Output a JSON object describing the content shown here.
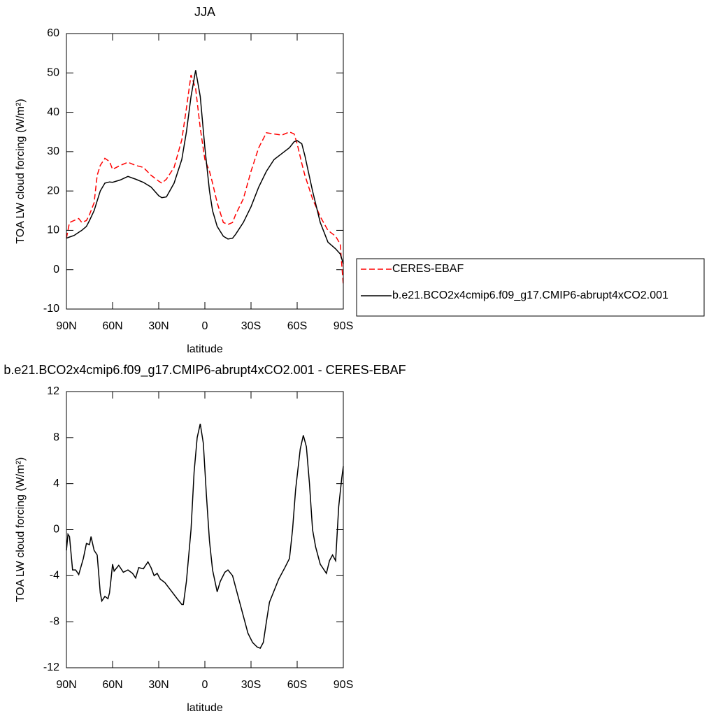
{
  "chart_data": [
    {
      "type": "line",
      "title": "JJA",
      "xlabel": "latitude",
      "ylabel": "TOA LW cloud forcing (W/m²)",
      "xlim": [
        90,
        -90
      ],
      "ylim": [
        -10,
        60
      ],
      "xticks": [
        {
          "value": 90,
          "label": "90N"
        },
        {
          "value": 60,
          "label": "60N"
        },
        {
          "value": 30,
          "label": "30N"
        },
        0,
        {
          "value": -30,
          "label": "30S"
        },
        {
          "value": -60,
          "label": "60S"
        },
        {
          "value": -90,
          "label": "90S"
        }
      ],
      "yticks": [
        -10,
        0,
        10,
        20,
        30,
        40,
        50,
        60
      ],
      "legend": "right",
      "x": [
        90,
        88,
        85,
        82,
        80,
        77,
        75,
        72,
        70,
        68,
        65,
        62,
        60,
        55,
        50,
        45,
        40,
        35,
        30,
        28,
        25,
        20,
        15,
        12,
        9,
        6,
        3,
        0,
        -3,
        -5,
        -8,
        -12,
        -15,
        -18,
        -20,
        -25,
        -30,
        -35,
        -40,
        -45,
        -50,
        -55,
        -58,
        -60,
        -63,
        -65,
        -70,
        -75,
        -80,
        -85,
        -88,
        -90
      ],
      "series": [
        {
          "name": "CERES-EBAF",
          "color": "#ff0000",
          "dashed": true,
          "values": [
            8,
            12,
            12.5,
            13,
            12,
            12.5,
            14,
            17,
            24,
            26.5,
            28.3,
            27.5,
            25.5,
            26.5,
            27.3,
            26.5,
            26,
            24,
            22.5,
            22,
            23,
            26,
            33,
            41,
            49.5,
            46,
            36,
            28,
            25,
            22,
            17,
            12,
            11.5,
            12,
            14,
            18,
            25,
            31,
            34.8,
            34.5,
            34.2,
            35,
            34.5,
            32,
            27,
            24,
            18,
            13.5,
            10,
            8.5,
            6.5,
            -4
          ]
        },
        {
          "name": "b.e21.BCO2x4cmip6.f09_g17.CMIP6-abrupt4xCO2.001",
          "color": "#000000",
          "dashed": false,
          "values": [
            8,
            8.3,
            8.7,
            9.5,
            10,
            11,
            12.5,
            15,
            17.5,
            20,
            22,
            22.3,
            22.2,
            22.8,
            23.7,
            23,
            22.2,
            21,
            18.8,
            18.3,
            18.5,
            22,
            28,
            35,
            44,
            50.7,
            44,
            31,
            20,
            15,
            11,
            8.5,
            7.8,
            8,
            9,
            12,
            16,
            21,
            25,
            28,
            29.5,
            31,
            32.5,
            32.8,
            32,
            29,
            20,
            12,
            7,
            5.3,
            4,
            1.5
          ]
        }
      ]
    },
    {
      "type": "line",
      "title": "b.e21.BCO2x4cmip6.f09_g17.CMIP6-abrupt4xCO2.001 - CERES-EBAF",
      "xlabel": "latitude",
      "ylabel": "TOA LW cloud forcing (W/m²)",
      "xlim": [
        90,
        -90
      ],
      "ylim": [
        -12,
        12
      ],
      "xticks": [
        {
          "value": 90,
          "label": "90N"
        },
        {
          "value": 60,
          "label": "60N"
        },
        {
          "value": 30,
          "label": "30N"
        },
        0,
        {
          "value": -30,
          "label": "30S"
        },
        {
          "value": -60,
          "label": "60S"
        },
        {
          "value": -90,
          "label": "90S"
        }
      ],
      "yticks": [
        -12,
        -8,
        -4,
        0,
        4,
        8,
        12
      ],
      "x": [
        90,
        89,
        88,
        86,
        84,
        82,
        79,
        77,
        75,
        74,
        72,
        70,
        68,
        67,
        65,
        63,
        62,
        61,
        60,
        59,
        56,
        53,
        50,
        47,
        45,
        43,
        40,
        37,
        35,
        33,
        31,
        29,
        26,
        22,
        18,
        15,
        14,
        12,
        9,
        7,
        5,
        3,
        1,
        -1,
        -3,
        -5,
        -8,
        -10,
        -13,
        -15,
        -18,
        -21,
        -25,
        -28,
        -31,
        -34,
        -36,
        -38,
        -40,
        -42,
        -45,
        -48,
        -52,
        -55,
        -57,
        -59,
        -62,
        -64,
        -66,
        -68,
        -70,
        -72,
        -75,
        -77,
        -79,
        -81,
        -83,
        -85,
        -87,
        -89,
        -90
      ],
      "series": [
        {
          "color": "#000000",
          "dashed": false,
          "values": [
            -1.8,
            -0.4,
            -0.6,
            -3.5,
            -3.5,
            -3.9,
            -2.5,
            -1.2,
            -1.3,
            -0.6,
            -1.8,
            -2.2,
            -5.5,
            -6.2,
            -5.8,
            -6,
            -5.5,
            -4.3,
            -3,
            -3.6,
            -3.1,
            -3.7,
            -3.5,
            -3.8,
            -4.2,
            -3.3,
            -3.4,
            -2.8,
            -3.3,
            -4,
            -3.8,
            -4.3,
            -4.6,
            -5.3,
            -6,
            -6.5,
            -6.5,
            -4.5,
            0,
            5,
            8,
            9.2,
            7.5,
            3,
            -1,
            -3.5,
            -5.4,
            -4.5,
            -3.7,
            -3.5,
            -4,
            -5.5,
            -7.5,
            -9,
            -9.8,
            -10.2,
            -10.3,
            -9.8,
            -8,
            -6.3,
            -5.3,
            -4.3,
            -3.3,
            -2.5,
            0,
            3.5,
            7,
            8.2,
            7.2,
            4,
            0,
            -1.5,
            -3,
            -3.4,
            -3.8,
            -2.7,
            -2.2,
            -2.7,
            2,
            4.5,
            5.5
          ]
        }
      ]
    }
  ]
}
